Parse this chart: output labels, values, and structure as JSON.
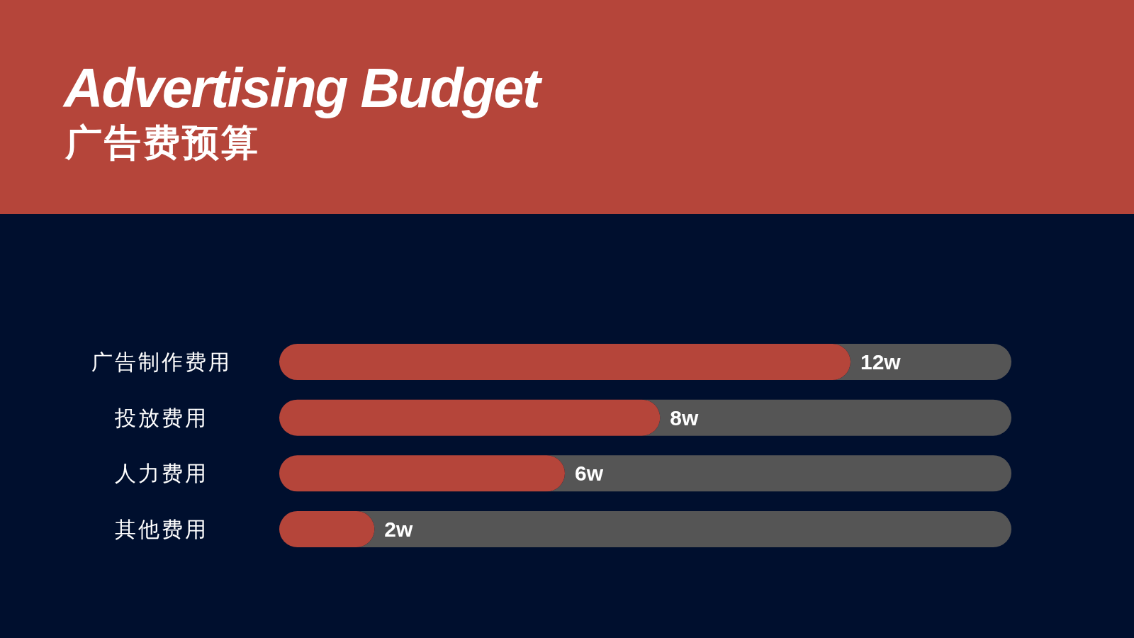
{
  "chart_data": {
    "type": "bar",
    "orientation": "horizontal",
    "title": "Advertising Budget",
    "subtitle": "广告费预算",
    "categories": [
      "广告制作费用",
      "投放费用",
      "人力费用",
      "其他费用"
    ],
    "values": [
      12,
      8,
      6,
      2
    ],
    "value_labels": [
      "12w",
      "8w",
      "6w",
      "2w"
    ],
    "color": "#b5453a",
    "tick_labels": "y"
  }
}
